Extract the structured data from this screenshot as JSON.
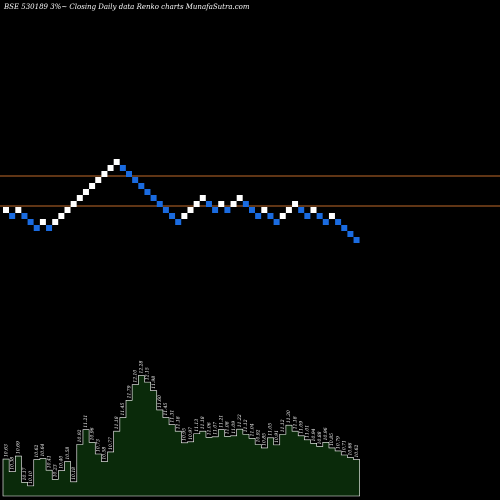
{
  "chart_data": {
    "type": "renko",
    "title": "BSE 530189 3%~  Closing Daily data  Renko  charts MunafaSutra.com",
    "colors": {
      "background": "#000000",
      "up_brick": "#ffffff",
      "down_brick": "#1a6be0",
      "reference_line": "#c06a2a",
      "volume_area": "#0a2a0a",
      "volume_outline": "#ffffff"
    },
    "reference_lines": [
      6.2,
      4.7
    ],
    "bricks": [
      {
        "i": 0,
        "level": 4.5,
        "dir": "up"
      },
      {
        "i": 1,
        "level": 4.2,
        "dir": "down"
      },
      {
        "i": 2,
        "level": 4.5,
        "dir": "up"
      },
      {
        "i": 3,
        "level": 4.2,
        "dir": "down"
      },
      {
        "i": 4,
        "level": 3.9,
        "dir": "down"
      },
      {
        "i": 5,
        "level": 3.6,
        "dir": "down"
      },
      {
        "i": 6,
        "level": 3.9,
        "dir": "up"
      },
      {
        "i": 7,
        "level": 3.6,
        "dir": "down"
      },
      {
        "i": 8,
        "level": 3.9,
        "dir": "up"
      },
      {
        "i": 9,
        "level": 4.2,
        "dir": "up"
      },
      {
        "i": 10,
        "level": 4.5,
        "dir": "up"
      },
      {
        "i": 11,
        "level": 4.8,
        "dir": "up"
      },
      {
        "i": 12,
        "level": 5.1,
        "dir": "up"
      },
      {
        "i": 13,
        "level": 5.4,
        "dir": "up"
      },
      {
        "i": 14,
        "level": 5.7,
        "dir": "up"
      },
      {
        "i": 15,
        "level": 6.0,
        "dir": "up"
      },
      {
        "i": 16,
        "level": 6.3,
        "dir": "up"
      },
      {
        "i": 17,
        "level": 6.6,
        "dir": "up"
      },
      {
        "i": 18,
        "level": 6.9,
        "dir": "up"
      },
      {
        "i": 19,
        "level": 6.6,
        "dir": "down"
      },
      {
        "i": 20,
        "level": 6.3,
        "dir": "down"
      },
      {
        "i": 21,
        "level": 6.0,
        "dir": "down"
      },
      {
        "i": 22,
        "level": 5.7,
        "dir": "down"
      },
      {
        "i": 23,
        "level": 5.4,
        "dir": "down"
      },
      {
        "i": 24,
        "level": 5.1,
        "dir": "down"
      },
      {
        "i": 25,
        "level": 4.8,
        "dir": "down"
      },
      {
        "i": 26,
        "level": 4.5,
        "dir": "down"
      },
      {
        "i": 27,
        "level": 4.2,
        "dir": "down"
      },
      {
        "i": 28,
        "level": 3.9,
        "dir": "down"
      },
      {
        "i": 29,
        "level": 4.2,
        "dir": "up"
      },
      {
        "i": 30,
        "level": 4.5,
        "dir": "up"
      },
      {
        "i": 31,
        "level": 4.8,
        "dir": "up"
      },
      {
        "i": 32,
        "level": 5.1,
        "dir": "up"
      },
      {
        "i": 33,
        "level": 4.8,
        "dir": "down"
      },
      {
        "i": 34,
        "level": 4.5,
        "dir": "down"
      },
      {
        "i": 35,
        "level": 4.8,
        "dir": "up"
      },
      {
        "i": 36,
        "level": 4.5,
        "dir": "down"
      },
      {
        "i": 37,
        "level": 4.8,
        "dir": "up"
      },
      {
        "i": 38,
        "level": 5.1,
        "dir": "up"
      },
      {
        "i": 39,
        "level": 4.8,
        "dir": "down"
      },
      {
        "i": 40,
        "level": 4.5,
        "dir": "down"
      },
      {
        "i": 41,
        "level": 4.2,
        "dir": "down"
      },
      {
        "i": 42,
        "level": 4.5,
        "dir": "up"
      },
      {
        "i": 43,
        "level": 4.2,
        "dir": "down"
      },
      {
        "i": 44,
        "level": 3.9,
        "dir": "down"
      },
      {
        "i": 45,
        "level": 4.2,
        "dir": "up"
      },
      {
        "i": 46,
        "level": 4.5,
        "dir": "up"
      },
      {
        "i": 47,
        "level": 4.8,
        "dir": "up"
      },
      {
        "i": 48,
        "level": 4.5,
        "dir": "down"
      },
      {
        "i": 49,
        "level": 4.2,
        "dir": "down"
      },
      {
        "i": 50,
        "level": 4.5,
        "dir": "up"
      },
      {
        "i": 51,
        "level": 4.2,
        "dir": "down"
      },
      {
        "i": 52,
        "level": 3.9,
        "dir": "down"
      },
      {
        "i": 53,
        "level": 4.2,
        "dir": "up"
      },
      {
        "i": 54,
        "level": 3.9,
        "dir": "down"
      },
      {
        "i": 55,
        "level": 3.6,
        "dir": "down"
      },
      {
        "i": 56,
        "level": 3.3,
        "dir": "down"
      },
      {
        "i": 57,
        "level": 3.0,
        "dir": "down"
      }
    ],
    "volume_labels": [
      "10.63",
      "10.38",
      "10.69",
      "10.17",
      "10.10",
      "10.62",
      "10.64",
      "10.41",
      "10.23",
      "10.40",
      "10.58",
      "10.18",
      "10.92",
      "11.21",
      "10.96",
      "10.73",
      "10.58",
      "10.77",
      "11.18",
      "11.45",
      "11.79",
      "12.10",
      "12.28",
      "12.15",
      "11.98",
      "11.60",
      "11.45",
      "11.31",
      "11.18",
      "10.95",
      "10.97",
      "11.13",
      "11.18",
      "11.06",
      "11.07",
      "11.21",
      "11.08",
      "11.09",
      "11.22",
      "11.12",
      "11.04",
      "10.92",
      "10.85",
      "11.05",
      "10.91",
      "11.12",
      "11.30",
      "11.18",
      "11.09",
      "11.01",
      "10.94",
      "10.88",
      "10.96",
      "10.85",
      "10.79",
      "10.71",
      "10.66",
      "10.62"
    ]
  }
}
